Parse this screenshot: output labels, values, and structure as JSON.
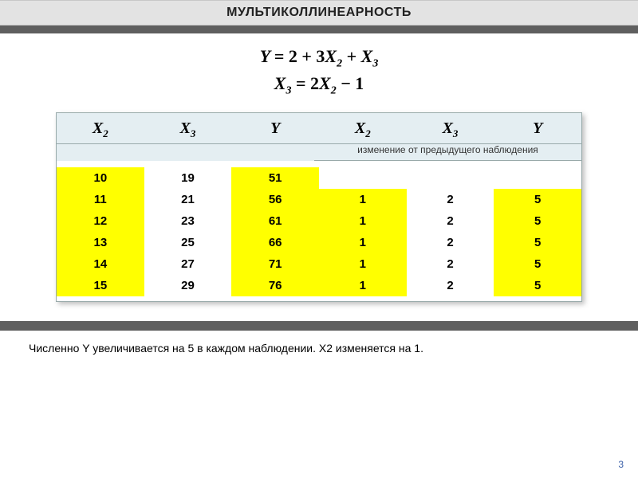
{
  "title": "МУЛЬТИКОЛЛИНЕАРНОСТЬ",
  "formula": {
    "line1_html": "Y = 2 + 3X<sub>2</sub> + X<sub>3</sub>",
    "line2_html": "X<sub>3</sub> = 2X<sub>2</sub> − 1"
  },
  "table": {
    "headers_left": [
      "X₂",
      "X₃",
      "Y"
    ],
    "headers_right": [
      "X₂",
      "X₃",
      "Y"
    ],
    "right_subtitle": "изменение от предыдущего наблюдения",
    "header_bg": "#e4eef2",
    "highlight_color": "#ffff00",
    "rows": [
      {
        "left": [
          "10",
          "19",
          "51"
        ],
        "right": [
          "",
          "",
          ""
        ]
      },
      {
        "left": [
          "11",
          "21",
          "56"
        ],
        "right": [
          "1",
          "2",
          "5"
        ]
      },
      {
        "left": [
          "12",
          "23",
          "61"
        ],
        "right": [
          "1",
          "2",
          "5"
        ]
      },
      {
        "left": [
          "13",
          "25",
          "66"
        ],
        "right": [
          "1",
          "2",
          "5"
        ]
      },
      {
        "left": [
          "14",
          "27",
          "71"
        ],
        "right": [
          "1",
          "2",
          "5"
        ]
      },
      {
        "left": [
          "15",
          "29",
          "76"
        ],
        "right": [
          "1",
          "2",
          "5"
        ]
      }
    ],
    "highlight_left_cols": [
      0,
      2
    ],
    "highlight_right_cols": [
      0,
      2
    ]
  },
  "caption": "Численно Y увеличивается на 5 в каждом наблюдении.  X2 изменяется на 1.",
  "page_number": "3",
  "colors": {
    "title_band": "#e3e3e3",
    "dark_bar": "#5f5f5f",
    "page_num": "#3a5fa8"
  },
  "fonts": {
    "title_size_pt": 16,
    "formula_size_pt": 22,
    "header_size_pt": 20,
    "body_size_pt": 15,
    "caption_size_pt": 14
  }
}
